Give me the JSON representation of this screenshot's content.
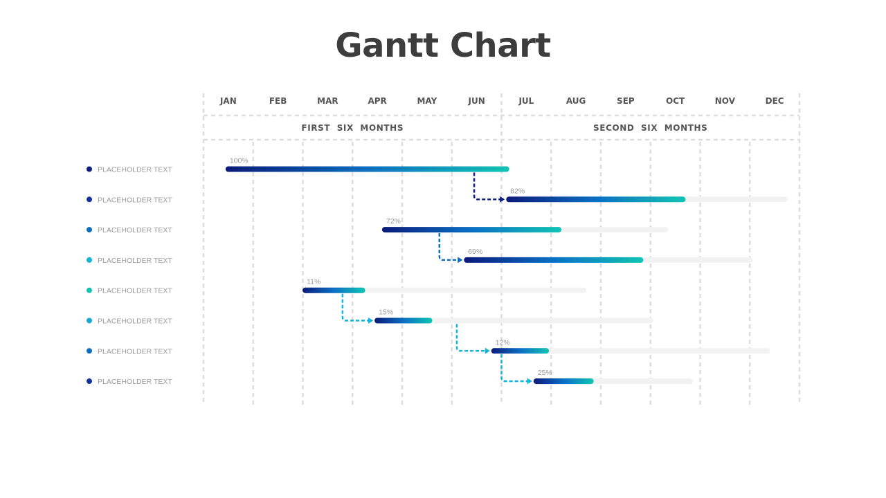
{
  "title": "Gantt Chart",
  "chart_data": {
    "type": "gantt",
    "title": "Gantt Chart",
    "months": [
      "JAN",
      "FEB",
      "MAR",
      "APR",
      "MAY",
      "JUN",
      "JUL",
      "AUG",
      "SEP",
      "OCT",
      "NOV",
      "DEC"
    ],
    "halves": [
      "FIRST  SIX  MONTHS",
      "SECOND  SIX  MONTHS"
    ],
    "colors": {
      "start": "#0a1a7a",
      "mid": "#0a6fc4",
      "end": "#11c4b4",
      "track": "#f2f2f2",
      "grid": "#dddddd"
    },
    "tasks": [
      {
        "label": "PLACEHOLDER TEXT",
        "dot": "#0d1e7e",
        "start": 0.5,
        "end": 6.1,
        "track_end": 6.1,
        "percent": 100,
        "percent_label": "100%"
      },
      {
        "label": "PLACEHOLDER TEXT",
        "dot": "#1530a0",
        "start": 6.15,
        "end": 9.65,
        "track_end": 11.7,
        "percent": 82,
        "percent_label": "82%"
      },
      {
        "label": "PLACEHOLDER TEXT",
        "dot": "#0a6fc4",
        "start": 3.65,
        "end": 7.15,
        "track_end": 9.3,
        "percent": 72,
        "percent_label": "72%"
      },
      {
        "label": "PLACEHOLDER TEXT",
        "dot": "#12b3d9",
        "start": 5.3,
        "end": 8.8,
        "track_end": 11.0,
        "percent": 69,
        "percent_label": "69%"
      },
      {
        "label": "PLACEHOLDER TEXT",
        "dot": "#11c4b4",
        "start": 2.05,
        "end": 3.2,
        "track_end": 7.65,
        "percent": 11,
        "percent_label": "11%"
      },
      {
        "label": "PLACEHOLDER TEXT",
        "dot": "#18a9d6",
        "start": 3.5,
        "end": 4.55,
        "track_end": 9.0,
        "percent": 15,
        "percent_label": "15%"
      },
      {
        "label": "PLACEHOLDER TEXT",
        "dot": "#0a6fc4",
        "start": 5.85,
        "end": 6.9,
        "track_end": 11.35,
        "percent": 12,
        "percent_label": "12%"
      },
      {
        "label": "PLACEHOLDER TEXT",
        "dot": "#1530a0",
        "start": 6.7,
        "end": 7.8,
        "track_end": 9.8,
        "percent": 25,
        "percent_label": "25%"
      }
    ],
    "dependencies": [
      {
        "from": 0,
        "to": 1,
        "at": 5.45,
        "color": "#0d1e7e"
      },
      {
        "from": 2,
        "to": 3,
        "at": 4.75,
        "color": "#0a6fc4"
      },
      {
        "from": 4,
        "to": 5,
        "at": 2.8,
        "color": "#12b3d9"
      },
      {
        "from": 5,
        "to": 6,
        "at": 5.1,
        "color": "#12b3d9"
      },
      {
        "from": 6,
        "to": 7,
        "at": 6.0,
        "color": "#12b3d9"
      }
    ]
  }
}
